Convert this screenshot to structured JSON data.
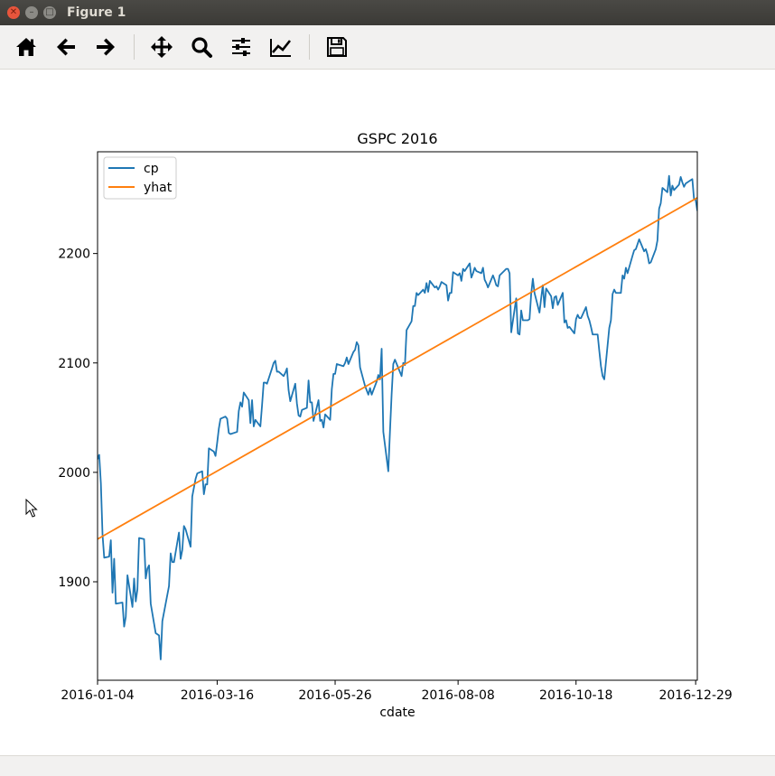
{
  "window": {
    "title": "Figure 1"
  },
  "toolbar": {
    "items": [
      {
        "name": "home-icon"
      },
      {
        "name": "back-arrow-icon"
      },
      {
        "name": "forward-arrow-icon"
      },
      {
        "name": "pan-icon"
      },
      {
        "name": "zoom-icon"
      },
      {
        "name": "subplots-config-icon"
      },
      {
        "name": "edit-curves-icon"
      },
      {
        "name": "save-icon"
      }
    ]
  },
  "chart_data": {
    "type": "line",
    "title": "GSPC 2016",
    "xlabel": "cdate",
    "ylabel": "",
    "x_ticks": [
      "2016-01-04",
      "2016-03-16",
      "2016-05-26",
      "2016-08-08",
      "2016-10-18",
      "2016-12-29"
    ],
    "x_range": [
      "2016-01-04",
      "2016-12-30"
    ],
    "yticks": [
      1900,
      2000,
      2100,
      2200
    ],
    "ylim": [
      1810,
      2293
    ],
    "grid": false,
    "legend": {
      "position": "upper-left"
    },
    "series": [
      {
        "name": "cp",
        "color": "#1f77b4",
        "points": [
          [
            "2016-01-04",
            2012
          ],
          [
            "2016-01-05",
            2016
          ],
          [
            "2016-01-06",
            1990
          ],
          [
            "2016-01-07",
            1943
          ],
          [
            "2016-01-08",
            1922
          ],
          [
            "2016-01-11",
            1923
          ],
          [
            "2016-01-12",
            1938
          ],
          [
            "2016-01-13",
            1890
          ],
          [
            "2016-01-14",
            1921
          ],
          [
            "2016-01-15",
            1880
          ],
          [
            "2016-01-19",
            1881
          ],
          [
            "2016-01-20",
            1859
          ],
          [
            "2016-01-21",
            1868
          ],
          [
            "2016-01-22",
            1906
          ],
          [
            "2016-01-25",
            1877
          ],
          [
            "2016-01-26",
            1903
          ],
          [
            "2016-01-27",
            1882
          ],
          [
            "2016-01-28",
            1893
          ],
          [
            "2016-01-29",
            1940
          ],
          [
            "2016-02-01",
            1939
          ],
          [
            "2016-02-02",
            1903
          ],
          [
            "2016-02-03",
            1912
          ],
          [
            "2016-02-04",
            1915
          ],
          [
            "2016-02-05",
            1880
          ],
          [
            "2016-02-08",
            1853
          ],
          [
            "2016-02-09",
            1852
          ],
          [
            "2016-02-10",
            1851
          ],
          [
            "2016-02-11",
            1829
          ],
          [
            "2016-02-12",
            1864
          ],
          [
            "2016-02-16",
            1896
          ],
          [
            "2016-02-17",
            1926
          ],
          [
            "2016-02-18",
            1918
          ],
          [
            "2016-02-19",
            1918
          ],
          [
            "2016-02-22",
            1945
          ],
          [
            "2016-02-23",
            1921
          ],
          [
            "2016-02-24",
            1929
          ],
          [
            "2016-02-25",
            1951
          ],
          [
            "2016-02-26",
            1948
          ],
          [
            "2016-02-29",
            1932
          ],
          [
            "2016-03-01",
            1978
          ],
          [
            "2016-03-02",
            1986
          ],
          [
            "2016-03-03",
            1994
          ],
          [
            "2016-03-04",
            1999
          ],
          [
            "2016-03-07",
            2001
          ],
          [
            "2016-03-08",
            1980
          ],
          [
            "2016-03-09",
            1989
          ],
          [
            "2016-03-10",
            1989
          ],
          [
            "2016-03-11",
            2022
          ],
          [
            "2016-03-14",
            2019
          ],
          [
            "2016-03-15",
            2015
          ],
          [
            "2016-03-16",
            2027
          ],
          [
            "2016-03-17",
            2040
          ],
          [
            "2016-03-18",
            2049
          ],
          [
            "2016-03-21",
            2051
          ],
          [
            "2016-03-22",
            2049
          ],
          [
            "2016-03-23",
            2036
          ],
          [
            "2016-03-24",
            2035
          ],
          [
            "2016-03-28",
            2037
          ],
          [
            "2016-03-29",
            2056
          ],
          [
            "2016-03-30",
            2064
          ],
          [
            "2016-03-31",
            2060
          ],
          [
            "2016-04-01",
            2073
          ],
          [
            "2016-04-04",
            2066
          ],
          [
            "2016-04-05",
            2045
          ],
          [
            "2016-04-06",
            2066
          ],
          [
            "2016-04-07",
            2042
          ],
          [
            "2016-04-08",
            2048
          ],
          [
            "2016-04-11",
            2042
          ],
          [
            "2016-04-12",
            2061
          ],
          [
            "2016-04-13",
            2082
          ],
          [
            "2016-04-14",
            2082
          ],
          [
            "2016-04-15",
            2081
          ],
          [
            "2016-04-18",
            2095
          ],
          [
            "2016-04-19",
            2100
          ],
          [
            "2016-04-20",
            2102
          ],
          [
            "2016-04-21",
            2092
          ],
          [
            "2016-04-22",
            2092
          ],
          [
            "2016-04-25",
            2088
          ],
          [
            "2016-04-26",
            2091
          ],
          [
            "2016-04-27",
            2095
          ],
          [
            "2016-04-28",
            2075
          ],
          [
            "2016-04-29",
            2065
          ],
          [
            "2016-05-02",
            2081
          ],
          [
            "2016-05-03",
            2063
          ],
          [
            "2016-05-04",
            2052
          ],
          [
            "2016-05-05",
            2051
          ],
          [
            "2016-05-06",
            2057
          ],
          [
            "2016-05-09",
            2059
          ],
          [
            "2016-05-10",
            2084
          ],
          [
            "2016-05-11",
            2064
          ],
          [
            "2016-05-12",
            2064
          ],
          [
            "2016-05-13",
            2047
          ],
          [
            "2016-05-16",
            2066
          ],
          [
            "2016-05-17",
            2047
          ],
          [
            "2016-05-18",
            2048
          ],
          [
            "2016-05-19",
            2041
          ],
          [
            "2016-05-20",
            2053
          ],
          [
            "2016-05-23",
            2048
          ],
          [
            "2016-05-24",
            2076
          ],
          [
            "2016-05-25",
            2090
          ],
          [
            "2016-05-26",
            2090
          ],
          [
            "2016-05-27",
            2099
          ],
          [
            "2016-05-31",
            2097
          ],
          [
            "2016-06-01",
            2100
          ],
          [
            "2016-06-02",
            2105
          ],
          [
            "2016-06-03",
            2099
          ],
          [
            "2016-06-06",
            2110
          ],
          [
            "2016-06-07",
            2112
          ],
          [
            "2016-06-08",
            2119
          ],
          [
            "2016-06-09",
            2116
          ],
          [
            "2016-06-10",
            2096
          ],
          [
            "2016-06-13",
            2079
          ],
          [
            "2016-06-14",
            2075
          ],
          [
            "2016-06-15",
            2071
          ],
          [
            "2016-06-16",
            2077
          ],
          [
            "2016-06-17",
            2071
          ],
          [
            "2016-06-20",
            2083
          ],
          [
            "2016-06-21",
            2089
          ],
          [
            "2016-06-22",
            2085
          ],
          [
            "2016-06-23",
            2113
          ],
          [
            "2016-06-24",
            2037
          ],
          [
            "2016-06-27",
            2001
          ],
          [
            "2016-06-28",
            2037
          ],
          [
            "2016-06-29",
            2071
          ],
          [
            "2016-06-30",
            2099
          ],
          [
            "2016-07-01",
            2103
          ],
          [
            "2016-07-05",
            2088
          ],
          [
            "2016-07-06",
            2100
          ],
          [
            "2016-07-07",
            2098
          ],
          [
            "2016-07-08",
            2130
          ],
          [
            "2016-07-11",
            2138
          ],
          [
            "2016-07-12",
            2152
          ],
          [
            "2016-07-13",
            2152
          ],
          [
            "2016-07-14",
            2164
          ],
          [
            "2016-07-15",
            2162
          ],
          [
            "2016-07-18",
            2167
          ],
          [
            "2016-07-19",
            2164
          ],
          [
            "2016-07-20",
            2173
          ],
          [
            "2016-07-21",
            2165
          ],
          [
            "2016-07-22",
            2175
          ],
          [
            "2016-07-25",
            2169
          ],
          [
            "2016-07-26",
            2170
          ],
          [
            "2016-07-27",
            2167
          ],
          [
            "2016-07-28",
            2170
          ],
          [
            "2016-07-29",
            2174
          ],
          [
            "2016-08-01",
            2171
          ],
          [
            "2016-08-02",
            2157
          ],
          [
            "2016-08-03",
            2164
          ],
          [
            "2016-08-04",
            2164
          ],
          [
            "2016-08-05",
            2183
          ],
          [
            "2016-08-08",
            2180
          ],
          [
            "2016-08-09",
            2182
          ],
          [
            "2016-08-10",
            2175
          ],
          [
            "2016-08-11",
            2186
          ],
          [
            "2016-08-12",
            2184
          ],
          [
            "2016-08-15",
            2191
          ],
          [
            "2016-08-16",
            2178
          ],
          [
            "2016-08-17",
            2182
          ],
          [
            "2016-08-18",
            2187
          ],
          [
            "2016-08-19",
            2184
          ],
          [
            "2016-08-22",
            2182
          ],
          [
            "2016-08-23",
            2187
          ],
          [
            "2016-08-24",
            2176
          ],
          [
            "2016-08-25",
            2173
          ],
          [
            "2016-08-26",
            2169
          ],
          [
            "2016-08-29",
            2180
          ],
          [
            "2016-08-30",
            2176
          ],
          [
            "2016-08-31",
            2171
          ],
          [
            "2016-09-01",
            2170
          ],
          [
            "2016-09-02",
            2180
          ],
          [
            "2016-09-06",
            2186
          ],
          [
            "2016-09-07",
            2186
          ],
          [
            "2016-09-08",
            2182
          ],
          [
            "2016-09-09",
            2128
          ],
          [
            "2016-09-12",
            2159
          ],
          [
            "2016-09-13",
            2127
          ],
          [
            "2016-09-14",
            2126
          ],
          [
            "2016-09-15",
            2148
          ],
          [
            "2016-09-16",
            2139
          ],
          [
            "2016-09-19",
            2139
          ],
          [
            "2016-09-20",
            2140
          ],
          [
            "2016-09-21",
            2163
          ],
          [
            "2016-09-22",
            2177
          ],
          [
            "2016-09-23",
            2164
          ],
          [
            "2016-09-26",
            2146
          ],
          [
            "2016-09-27",
            2159
          ],
          [
            "2016-09-28",
            2171
          ],
          [
            "2016-09-29",
            2151
          ],
          [
            "2016-09-30",
            2168
          ],
          [
            "2016-10-03",
            2161
          ],
          [
            "2016-10-04",
            2150
          ],
          [
            "2016-10-05",
            2160
          ],
          [
            "2016-10-06",
            2161
          ],
          [
            "2016-10-07",
            2153
          ],
          [
            "2016-10-10",
            2164
          ],
          [
            "2016-10-11",
            2137
          ],
          [
            "2016-10-12",
            2139
          ],
          [
            "2016-10-13",
            2132
          ],
          [
            "2016-10-14",
            2133
          ],
          [
            "2016-10-17",
            2127
          ],
          [
            "2016-10-18",
            2140
          ],
          [
            "2016-10-19",
            2144
          ],
          [
            "2016-10-20",
            2141
          ],
          [
            "2016-10-21",
            2141
          ],
          [
            "2016-10-24",
            2151
          ],
          [
            "2016-10-25",
            2143
          ],
          [
            "2016-10-26",
            2139
          ],
          [
            "2016-10-27",
            2133
          ],
          [
            "2016-10-28",
            2126
          ],
          [
            "2016-10-31",
            2126
          ],
          [
            "2016-11-01",
            2111
          ],
          [
            "2016-11-02",
            2097
          ],
          [
            "2016-11-03",
            2088
          ],
          [
            "2016-11-04",
            2085
          ],
          [
            "2016-11-07",
            2132
          ],
          [
            "2016-11-08",
            2139
          ],
          [
            "2016-11-09",
            2163
          ],
          [
            "2016-11-10",
            2167
          ],
          [
            "2016-11-11",
            2164
          ],
          [
            "2016-11-14",
            2164
          ],
          [
            "2016-11-15",
            2180
          ],
          [
            "2016-11-16",
            2177
          ],
          [
            "2016-11-17",
            2187
          ],
          [
            "2016-11-18",
            2182
          ],
          [
            "2016-11-21",
            2198
          ],
          [
            "2016-11-22",
            2203
          ],
          [
            "2016-11-23",
            2204
          ],
          [
            "2016-11-25",
            2213
          ],
          [
            "2016-11-28",
            2202
          ],
          [
            "2016-11-29",
            2204
          ],
          [
            "2016-11-30",
            2199
          ],
          [
            "2016-12-01",
            2191
          ],
          [
            "2016-12-02",
            2192
          ],
          [
            "2016-12-05",
            2204
          ],
          [
            "2016-12-06",
            2212
          ],
          [
            "2016-12-07",
            2241
          ],
          [
            "2016-12-08",
            2246
          ],
          [
            "2016-12-09",
            2260
          ],
          [
            "2016-12-12",
            2256
          ],
          [
            "2016-12-13",
            2271
          ],
          [
            "2016-12-14",
            2253
          ],
          [
            "2016-12-15",
            2262
          ],
          [
            "2016-12-16",
            2258
          ],
          [
            "2016-12-19",
            2263
          ],
          [
            "2016-12-20",
            2270
          ],
          [
            "2016-12-21",
            2265
          ],
          [
            "2016-12-22",
            2261
          ],
          [
            "2016-12-23",
            2264
          ],
          [
            "2016-12-27",
            2268
          ],
          [
            "2016-12-28",
            2250
          ],
          [
            "2016-12-29",
            2249
          ],
          [
            "2016-12-30",
            2239
          ]
        ]
      },
      {
        "name": "yhat",
        "color": "#ff7f0e",
        "points": [
          [
            "2016-01-04",
            1939
          ],
          [
            "2016-12-30",
            2251
          ]
        ]
      }
    ]
  }
}
